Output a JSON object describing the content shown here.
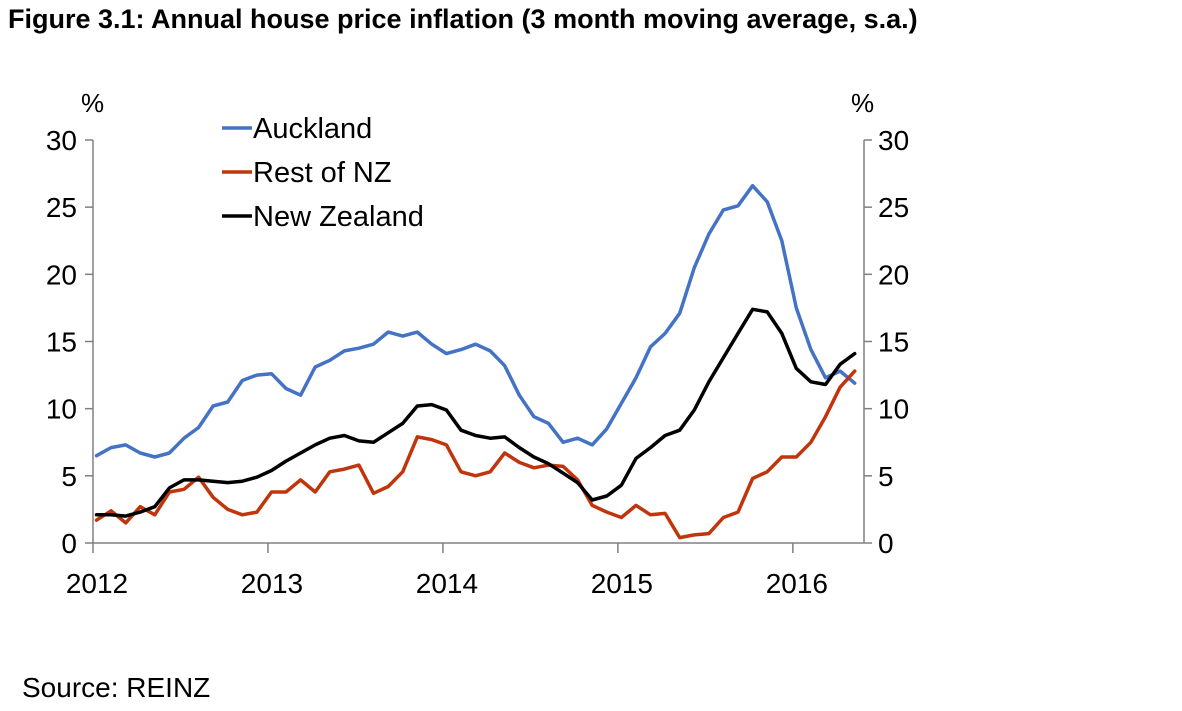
{
  "title": "Figure 3.1: Annual house price inflation (3 month moving average, s.a.)",
  "source": "Source: REINZ",
  "chart_data": {
    "type": "line",
    "x_start": "2012-01",
    "x_interval": "month",
    "x_ticks": [
      "2012",
      "2013",
      "2014",
      "2015",
      "2016"
    ],
    "y_unit_left": "%",
    "y_unit_right": "%",
    "ylim": [
      0,
      30
    ],
    "y_ticks": [
      "0",
      "5",
      "10",
      "15",
      "20",
      "25",
      "30"
    ],
    "grid": false,
    "legend": "top-left",
    "series": [
      {
        "name": "Auckland",
        "color": "#4472C4",
        "values": [
          6.5,
          7.1,
          7.3,
          6.7,
          6.4,
          6.7,
          7.8,
          8.6,
          10.2,
          10.5,
          12.1,
          12.5,
          12.6,
          11.5,
          11.0,
          13.1,
          13.6,
          14.3,
          14.5,
          14.8,
          15.7,
          15.4,
          15.7,
          14.8,
          14.1,
          14.4,
          14.8,
          14.3,
          13.2,
          11.0,
          9.4,
          8.9,
          7.5,
          7.8,
          7.3,
          8.5,
          10.4,
          12.3,
          14.6,
          15.6,
          17.1,
          20.5,
          23.0,
          24.8,
          25.1,
          26.6,
          25.4,
          22.5,
          17.5,
          14.4,
          12.3,
          12.8,
          11.9
        ]
      },
      {
        "name": "Rest of NZ",
        "color": "#C0350C",
        "values": [
          1.7,
          2.4,
          1.5,
          2.7,
          2.1,
          3.8,
          4.0,
          4.9,
          3.4,
          2.5,
          2.1,
          2.3,
          3.8,
          3.8,
          4.7,
          3.8,
          5.3,
          5.5,
          5.8,
          3.7,
          4.2,
          5.3,
          7.9,
          7.7,
          7.3,
          5.3,
          5.0,
          5.3,
          6.7,
          6.0,
          5.6,
          5.8,
          5.7,
          4.7,
          2.8,
          2.3,
          1.9,
          2.8,
          2.1,
          2.2,
          0.4,
          0.6,
          0.7,
          1.9,
          2.3,
          4.8,
          5.3,
          6.4,
          6.4,
          7.5,
          9.4,
          11.6,
          12.8
        ]
      },
      {
        "name": "New Zealand",
        "color": "#000000",
        "values": [
          2.1,
          2.1,
          2.0,
          2.3,
          2.7,
          4.1,
          4.7,
          4.7,
          4.6,
          4.5,
          4.6,
          4.9,
          5.4,
          6.1,
          6.7,
          7.3,
          7.8,
          8.0,
          7.6,
          7.5,
          8.2,
          8.9,
          10.2,
          10.3,
          9.9,
          8.4,
          8.0,
          7.8,
          7.9,
          7.1,
          6.4,
          5.9,
          5.2,
          4.5,
          3.2,
          3.5,
          4.3,
          6.3,
          7.1,
          8.0,
          8.4,
          9.9,
          12.0,
          13.8,
          15.6,
          17.4,
          17.2,
          15.6,
          13.0,
          12.0,
          11.8,
          13.3,
          14.1
        ]
      }
    ]
  }
}
